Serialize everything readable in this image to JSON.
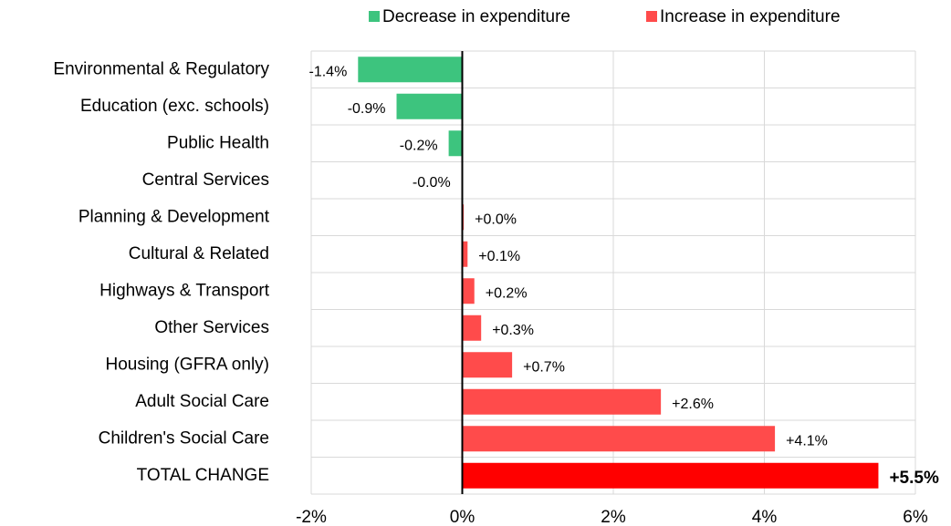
{
  "chart_data": {
    "type": "bar",
    "orientation": "horizontal",
    "categories": [
      "Environmental & Regulatory",
      "Education (exc. schools)",
      "Public Health",
      "Central Services",
      "Planning & Development",
      "Cultural & Related",
      "Highways & Transport",
      "Other Services",
      "Housing (GFRA only)",
      "Adult Social Care",
      "Children's Social Care",
      "TOTAL CHANGE"
    ],
    "values": [
      -1.38,
      -0.87,
      -0.18,
      -0.01,
      0.02,
      0.07,
      0.16,
      0.25,
      0.66,
      2.63,
      4.14,
      5.51
    ],
    "value_labels": [
      "-1.4%",
      "-0.9%",
      "-0.2%",
      "-0.0%",
      "+0.0%",
      "+0.1%",
      "+0.2%",
      "+0.3%",
      "+0.7%",
      "+2.6%",
      "+4.1%",
      "+5.5%"
    ],
    "colors": [
      "#3dc47e",
      "#3dc47e",
      "#3dc47e",
      "#3dc47e",
      "#ff4b4b",
      "#ff4b4b",
      "#ff4b4b",
      "#ff4b4b",
      "#ff4b4b",
      "#ff4b4b",
      "#ff4b4b",
      "#ff0000"
    ],
    "legend": [
      {
        "name": "Decrease in expenditure",
        "color": "#3dc47e"
      },
      {
        "name": "Increase in expenditure",
        "color": "#ff4b4b"
      }
    ],
    "xlim": [
      -2,
      6
    ],
    "xticks": [
      {
        "value": -2,
        "label": "-2%"
      },
      {
        "value": 0,
        "label": "0%"
      },
      {
        "value": 2,
        "label": "2%"
      },
      {
        "value": 4,
        "label": "4%"
      },
      {
        "value": 6,
        "label": "6%"
      }
    ],
    "grid": true
  }
}
